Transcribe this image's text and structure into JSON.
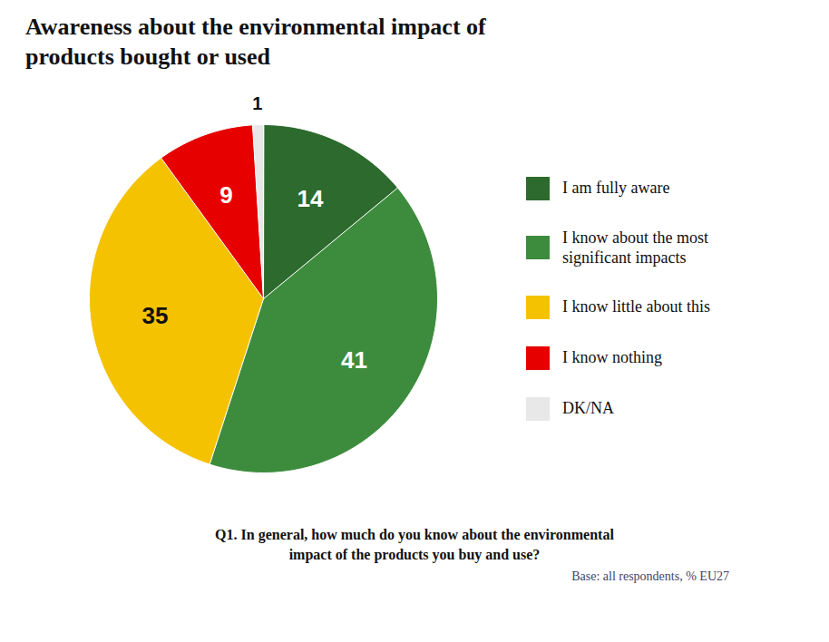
{
  "chart_data": {
    "type": "pie",
    "title": "Awareness about the environmental impact of\nproducts bought or used",
    "categories": [
      "I am fully aware",
      "I know about the most\nsignificant impacts",
      "I know little about this",
      "I know nothing",
      "DK/NA"
    ],
    "values": [
      14,
      41,
      35,
      9,
      1
    ],
    "colors": [
      "#2d6a2d",
      "#3d8c3d",
      "#f5c200",
      "#e60000",
      "#e8e8e8"
    ],
    "data_labels": true,
    "legend": "right",
    "annotations": [
      "Q1. In general, how much do you know about the environmental\nimpact of the products you buy and use?",
      "Base: all respondents, % EU27"
    ]
  }
}
